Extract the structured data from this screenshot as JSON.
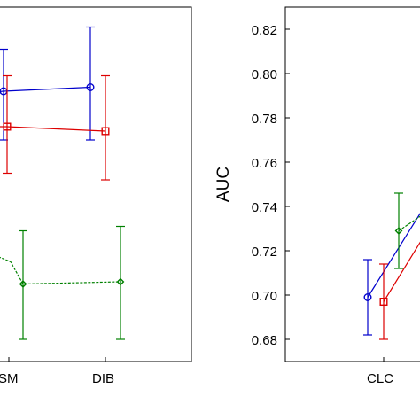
{
  "chart_data": [
    {
      "type": "line",
      "title": "",
      "xlabel": "",
      "ylabel": "",
      "categories": [
        "SM",
        "DIB"
      ],
      "ylim": [
        0.675,
        0.83
      ],
      "grid": false,
      "error_bars": true,
      "series": [
        {
          "color": "#0000cc",
          "marker": "circle",
          "line_style": "solid",
          "values": [
            0.792,
            0.7938
          ],
          "err_low": [
            0.77,
            0.77
          ],
          "err_high": [
            0.811,
            0.821
          ]
        },
        {
          "color": "#dd0000",
          "marker": "square",
          "line_style": "solid",
          "values": [
            0.776,
            0.774
          ],
          "err_low": [
            0.755,
            0.752
          ],
          "err_high": [
            0.799,
            0.799
          ]
        },
        {
          "color": "#008000",
          "marker": "diamond",
          "line_style": "dashed",
          "values": [
            0.705,
            0.706
          ],
          "err_low": [
            0.68,
            0.68
          ],
          "err_high": [
            0.729,
            0.731
          ]
        }
      ]
    },
    {
      "type": "line",
      "title": "",
      "xlabel": "",
      "ylabel": "AUC",
      "categories": [
        "CLC"
      ],
      "ylim": [
        0.67,
        0.83
      ],
      "yticks": [
        "0.68",
        "0.70",
        "0.72",
        "0.74",
        "0.76",
        "0.78",
        "0.80",
        "0.82"
      ],
      "grid": false,
      "error_bars": true,
      "series": [
        {
          "color": "#0000cc",
          "marker": "circle",
          "line_style": "solid",
          "values": [
            0.699
          ],
          "err_low": [
            0.682
          ],
          "err_high": [
            0.716
          ]
        },
        {
          "color": "#dd0000",
          "marker": "square",
          "line_style": "solid",
          "values": [
            0.697
          ],
          "err_low": [
            0.68
          ],
          "err_high": [
            0.714
          ]
        },
        {
          "color": "#008000",
          "marker": "diamond",
          "line_style": "dashed",
          "values": [
            0.729
          ],
          "err_low": [
            0.712
          ],
          "err_high": [
            0.746
          ]
        }
      ]
    }
  ]
}
